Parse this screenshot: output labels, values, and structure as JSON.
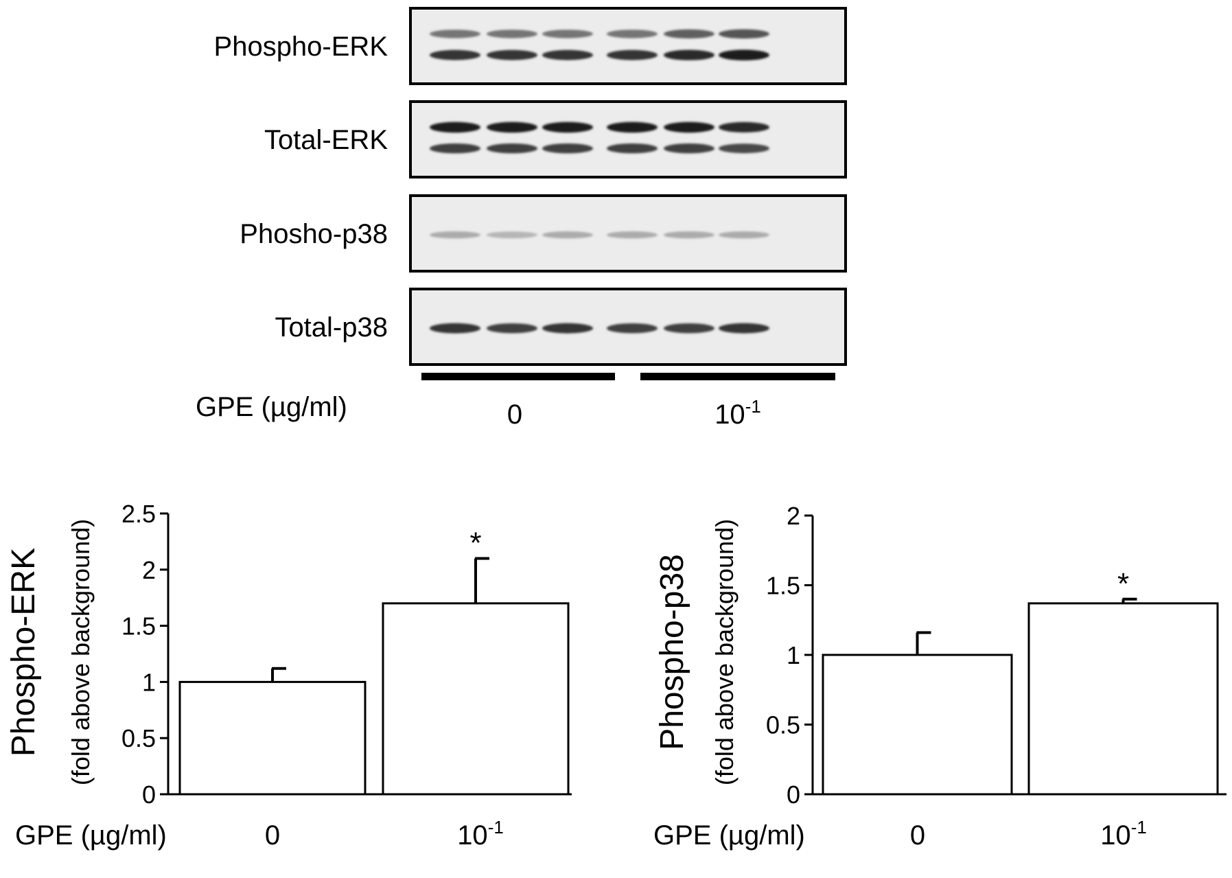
{
  "blots": {
    "rows": [
      {
        "label": "Phospho-ERK",
        "bands": [
          {
            "intensities": [
              0.55,
              0.55,
              0.55,
              0.55,
              0.65,
              0.7
            ]
          },
          {
            "intensities": [
              0.85,
              0.85,
              0.85,
              0.85,
              0.9,
              0.95
            ]
          }
        ]
      },
      {
        "label": "Total-ERK",
        "bands": [
          {
            "intensities": [
              0.95,
              0.95,
              0.95,
              0.95,
              0.95,
              0.9
            ]
          },
          {
            "intensities": [
              0.8,
              0.8,
              0.8,
              0.8,
              0.8,
              0.75
            ]
          }
        ]
      },
      {
        "label": "Phosho-p38",
        "bands": [
          {
            "intensities": [
              0.3,
              0.25,
              0.3,
              0.3,
              0.3,
              0.3
            ]
          }
        ]
      },
      {
        "label": "Total-p38",
        "bands": [
          {
            "intensities": [
              0.85,
              0.8,
              0.85,
              0.8,
              0.8,
              0.85
            ]
          }
        ]
      }
    ],
    "group_axis_label": "GPE (µg/ml)",
    "groups": [
      {
        "base": "0",
        "sup": ""
      },
      {
        "base": "10",
        "sup": "-1"
      }
    ]
  },
  "chart_data": [
    {
      "type": "bar",
      "ylabel": "Phospho-ERK",
      "ylabel_sub": "(fold above background)",
      "xlabel": "GPE (µg/ml)",
      "categories": [
        {
          "base": "0",
          "sup": ""
        },
        {
          "base": "10",
          "sup": "-1"
        }
      ],
      "values": [
        1.0,
        1.7
      ],
      "errors": [
        0.12,
        0.4
      ],
      "significance": [
        "",
        "*"
      ],
      "ylim": [
        0,
        2.5
      ],
      "yticks": [
        "0",
        "0.5",
        "1",
        "1.5",
        "2",
        "2.5"
      ],
      "bar_color": "#ffffff",
      "grid": false
    },
    {
      "type": "bar",
      "ylabel": "Phospho-p38",
      "ylabel_sub": "(fold above background)",
      "xlabel": "GPE (µg/ml)",
      "categories": [
        {
          "base": "0",
          "sup": ""
        },
        {
          "base": "10",
          "sup": "-1"
        }
      ],
      "values": [
        1.0,
        1.37
      ],
      "errors": [
        0.16,
        0.03
      ],
      "significance": [
        "",
        "*"
      ],
      "ylim": [
        0,
        2
      ],
      "yticks": [
        "0",
        "0.5",
        "1",
        "1.5",
        "2"
      ],
      "bar_color": "#ffffff",
      "grid": false
    }
  ]
}
